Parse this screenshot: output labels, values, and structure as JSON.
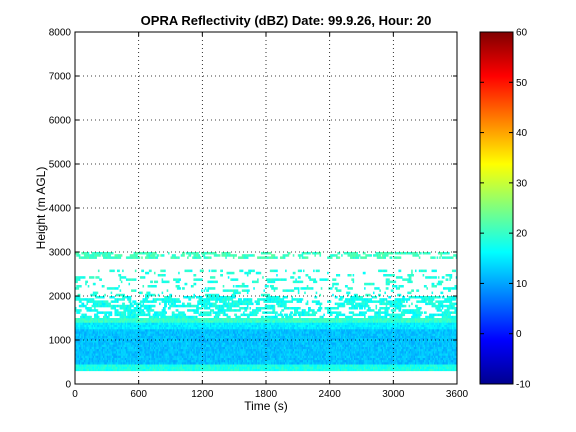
{
  "chart_data": {
    "type": "heatmap",
    "title": "OPRA Reflectivity (dBZ)  Date: 99.9.26, Hour: 20",
    "xlabel": "Time (s)",
    "ylabel": "Height (m AGL)",
    "xlim": [
      0,
      3600
    ],
    "ylim": [
      0,
      8000
    ],
    "x_ticks": [
      "0",
      "600",
      "1200",
      "1800",
      "2400",
      "3000",
      "3600"
    ],
    "y_ticks": [
      "0",
      "1000",
      "2000",
      "3000",
      "4000",
      "5000",
      "6000",
      "7000",
      "8000"
    ],
    "grid": true,
    "colorbar": {
      "range": [
        -10,
        60
      ],
      "ticks": [
        "-10",
        "0",
        "10",
        "20",
        "30",
        "40",
        "50",
        "60"
      ],
      "colormap": "jet"
    },
    "layers": [
      {
        "height_range_m": [
          300,
          450
        ],
        "coverage": "continuous",
        "dBZ_range": [
          16,
          20
        ]
      },
      {
        "height_range_m": [
          450,
          1250
        ],
        "coverage": "continuous",
        "dBZ_range": [
          10,
          14
        ]
      },
      {
        "height_range_m": [
          1250,
          1400
        ],
        "coverage": "continuous",
        "dBZ_range": [
          13,
          17
        ]
      },
      {
        "height_range_m": [
          1400,
          1500
        ],
        "coverage": "continuous",
        "dBZ_range": [
          18,
          22
        ]
      },
      {
        "height_range_m": [
          1500,
          2000
        ],
        "coverage": "scattered",
        "dBZ_range": [
          15,
          20
        ]
      },
      {
        "height_range_m": [
          2000,
          2600
        ],
        "coverage": "sparse",
        "dBZ_range": [
          16,
          21
        ]
      },
      {
        "height_range_m": [
          2850,
          3000
        ],
        "coverage": "patchy",
        "dBZ_range": [
          18,
          23
        ]
      }
    ]
  }
}
